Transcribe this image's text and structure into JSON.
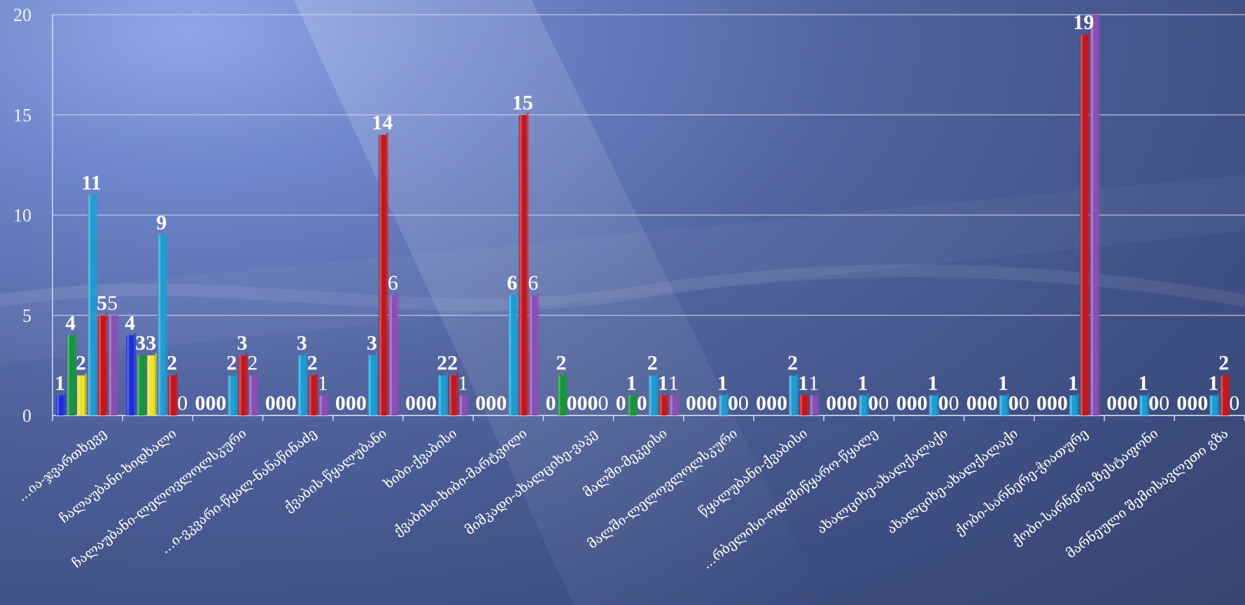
{
  "chart_data": {
    "type": "bar",
    "ylim": [
      0,
      20
    ],
    "yticks": [
      "0",
      "5",
      "10",
      "15",
      "20"
    ],
    "grid": true,
    "categories": [
      "...ია-ჯვართხევე",
      "ჩალაუბანი-ხიდხალი",
      "ჩალაუბანი-ლელოვლოლსკური",
      "...ი-ვკვარი-წყალ-ნანაწინაძე",
      "ქვაბის-წყალუბანი",
      "ხიბი-ქვაბისი",
      "ქვაბისი-ხიბი-მარტვილი",
      "მიშკადი-ახალციხე-ვაკე",
      "მალში-მეკეისი",
      "მალში-ლელოვლოლსკური",
      "წყალუბანი-ქვაბისი",
      "...რბელისი-ოდიშიწყარო-წყალე",
      "ახალციხე-ახალქალაქი",
      "ახალციხე-ახალქალაქი",
      "ქობი-სარნერე-ჭიათურე",
      "ქობი-სარნერე-ზესტაფონი",
      "მარნეული შემოსავლეთი გზა"
    ],
    "series": [
      {
        "color": "#1d2fd6",
        "values": [
          1,
          4,
          0,
          0,
          0,
          0,
          0,
          0,
          0,
          0,
          0,
          0,
          0,
          0,
          0,
          0,
          0
        ]
      },
      {
        "color": "#14963a",
        "values": [
          4,
          3,
          0,
          0,
          0,
          0,
          0,
          2,
          1,
          0,
          0,
          0,
          0,
          0,
          0,
          0,
          0
        ]
      },
      {
        "color": "#ece22a",
        "values": [
          2,
          3,
          0,
          0,
          0,
          0,
          0,
          0,
          0,
          0,
          0,
          0,
          0,
          0,
          0,
          0,
          0
        ]
      },
      {
        "color": "#1c9ed4",
        "values": [
          11,
          9,
          2,
          3,
          3,
          2,
          6,
          0,
          2,
          1,
          2,
          1,
          1,
          1,
          1,
          1,
          1
        ]
      },
      {
        "color": "#c4161c",
        "values": [
          5,
          2,
          3,
          2,
          14,
          2,
          15,
          0,
          1,
          0,
          1,
          0,
          0,
          0,
          19,
          0,
          2
        ]
      },
      {
        "color": "#8a4fb5",
        "values": [
          5,
          0,
          2,
          1,
          6,
          1,
          6,
          0,
          1,
          0,
          1,
          0,
          0,
          0,
          20,
          0,
          0
        ]
      }
    ],
    "data_labels": [
      [
        "1",
        "4",
        "2",
        "11",
        "5",
        "5"
      ],
      [
        "4",
        "3",
        "3",
        "9",
        "2",
        "0"
      ],
      [
        "0",
        "0",
        "0",
        "2",
        "3",
        "2"
      ],
      [
        "0",
        "0",
        "0",
        "3",
        "2",
        "1"
      ],
      [
        "0",
        "0",
        "0",
        "3",
        "14",
        "6"
      ],
      [
        "0",
        "0",
        "0",
        "2",
        "2",
        "1"
      ],
      [
        "0",
        "0",
        "0",
        "6",
        "15",
        "6"
      ],
      [
        "0",
        "2",
        "0",
        "0",
        "0",
        "0"
      ],
      [
        "0",
        "1",
        "0",
        "2",
        "1",
        "1"
      ],
      [
        "0",
        "0",
        "0",
        "1",
        "0",
        "0"
      ],
      [
        "0",
        "0",
        "0",
        "2",
        "1",
        "1"
      ],
      [
        "0",
        "0",
        "0",
        "1",
        "0",
        "0"
      ],
      [
        "0",
        "0",
        "0",
        "1",
        "0",
        "0"
      ],
      [
        "0",
        "0",
        "0",
        "1",
        "0",
        "0"
      ],
      [
        "0",
        "0",
        "0",
        "1",
        "19",
        ""
      ],
      [
        "0",
        "0",
        "0",
        "1",
        "0",
        "0"
      ],
      [
        "0",
        "0",
        "0",
        "1",
        "2",
        "0"
      ]
    ],
    "bold_labels": [
      true,
      true,
      true,
      true,
      true,
      false
    ]
  }
}
